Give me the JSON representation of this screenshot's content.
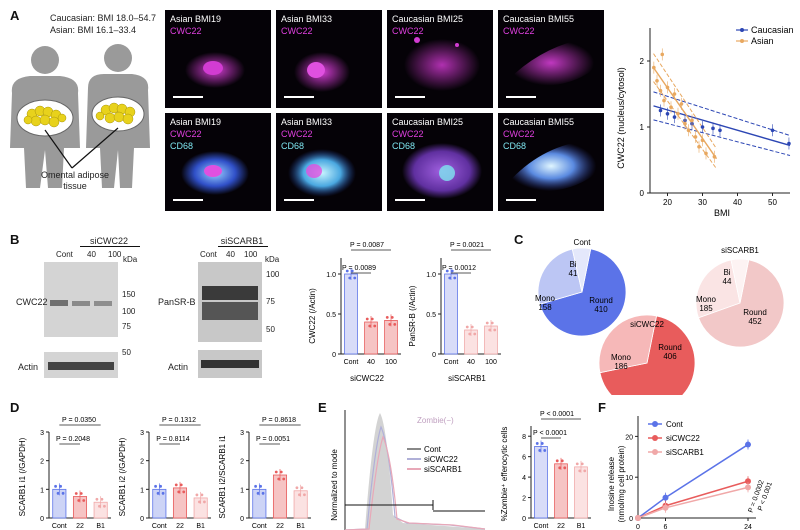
{
  "panels": {
    "a": "A",
    "b": "B",
    "c": "C",
    "d": "D",
    "e": "E",
    "f": "F"
  },
  "a": {
    "bmi_line1": "Caucasian: BMI 18.0–54.7",
    "bmi_line2": "Asian: BMI 16.1–33.4",
    "tissue_line1": "Omental adipose",
    "tissue_line2": "tissue",
    "micro_top": [
      {
        "title": "Asian BMI19",
        "ch1": "CWC22"
      },
      {
        "title": "Asian BMI33",
        "ch1": "CWC22"
      },
      {
        "title": "Caucasian BMI25",
        "ch1": "CWC22"
      },
      {
        "title": "Caucasian BMI55",
        "ch1": "CWC22"
      }
    ],
    "micro_bottom": [
      {
        "title": "Asian BMI19",
        "ch1": "CWC22",
        "ch2": "CD68"
      },
      {
        "title": "Asian BMI33",
        "ch1": "CWC22",
        "ch2": "CD68"
      },
      {
        "title": "Caucasian BMI25",
        "ch1": "CWC22",
        "ch2": "CD68"
      },
      {
        "title": "Caucasian BMI55",
        "ch1": "CWC22",
        "ch2": "CD68"
      }
    ],
    "colors": {
      "magenta": "#d23cd2",
      "cyan": "#7ee6f0",
      "caucasian": "#2c46b4",
      "asian": "#e8a860"
    }
  },
  "b": {
    "blot1_header": "siCWC22",
    "blot1_lanes": [
      "Cont",
      "40",
      "100"
    ],
    "blot1_kda": "kDa",
    "blot1_markers": [
      "150",
      "100",
      "75",
      "50"
    ],
    "blot1_protein": "CWC22",
    "blot1_actin": "Actin",
    "blot2_header": "siSCARB1",
    "blot2_lanes": [
      "Cont",
      "40",
      "100"
    ],
    "blot2_kda": "kDa",
    "blot2_markers": [
      "100",
      "75",
      "50"
    ],
    "blot2_protein": "PanSR-B",
    "blot2_actin": "Actin",
    "bar1_p1": "P = 0.0087",
    "bar1_p2": "P = 0.0089",
    "bar1_ylabel": "CWC22 (/Actin)",
    "bar1_x": [
      "Cont",
      "40",
      "100"
    ],
    "bar1_group": "siCWC22",
    "bar2_p1": "P = 0.0021",
    "bar2_p2": "P = 0.0012",
    "bar2_ylabel": "PanSR-B (/Actin)",
    "bar2_x": [
      "Cont",
      "40",
      "100"
    ],
    "bar2_group": "siSCARB1"
  },
  "c": {
    "pie1_title": "Cont",
    "pie2_title": "siCWC22",
    "pie3_title": "siSCARB1",
    "slice_labels": {
      "bi": "Bi",
      "mono": "Mono",
      "round": "Round"
    },
    "cont": {
      "bi": "41",
      "mono": "158",
      "round": "410"
    },
    "sicwc22": {
      "mono": "186",
      "round": "406"
    },
    "siscarb1": {
      "bi": "44",
      "mono": "185",
      "round": "452"
    },
    "colors": {
      "cont": "#5b73e8",
      "sicwc22": "#e85c5c",
      "siscarb1": "#f2c8c8"
    }
  },
  "d": {
    "g1_p1": "P = 0.0350",
    "g1_p2": "P = 0.2048",
    "g1_ylabel": "SCARB1 i1 (/GAPDH)",
    "g2_p1": "P = 0.1312",
    "g2_p2": "P = 0.8114",
    "g2_ylabel": "SCARB1 i2 (/GAPDH)",
    "g3_p1": "P = 0.8618",
    "g3_p2": "P = 0.0051",
    "g3_ylabel": "SCARB1 i2/SCARB1 i1",
    "x_partial": [
      "Cont",
      "22",
      "B1"
    ]
  },
  "e": {
    "hist_ylabel": "Normalized to mode",
    "zombie_label": "Zombie(−)",
    "legend": [
      "Cont",
      "siCWC22",
      "siSCARB1"
    ],
    "bar_p1": "P < 0.0001",
    "bar_p2": "P < 0.0001",
    "bar_ylabel": "%Zombie⁺ efferocytic cells",
    "x_partial": [
      "Cont",
      "22",
      "B1"
    ]
  },
  "f": {
    "legend": [
      "Cont",
      "siCWC22",
      "siSCARB1"
    ],
    "ylabel_line1": "Inosine release",
    "ylabel_line2": "(nmol/mg cell protein)",
    "p1": "P = 0.0002",
    "p2": "P < 0.001",
    "x_ticks": [
      "0",
      "6",
      "24"
    ]
  },
  "chart_data": [
    {
      "type": "scatter",
      "title": "",
      "xlabel": "BMI",
      "ylabel": "CWC22 (nucleus/cytosol)",
      "xlim": [
        15,
        55
      ],
      "ylim": [
        0,
        2.5
      ],
      "x_ticks": [
        "20",
        "30",
        "40",
        "50"
      ],
      "y_ticks": [
        "0",
        "1",
        "2"
      ],
      "legend": "top-right",
      "series": [
        {
          "name": "Caucasian",
          "color": "#2c46b4",
          "points": [
            [
              18,
              1.25
            ],
            [
              20,
              1.2
            ],
            [
              22,
              1.15
            ],
            [
              25,
              1.1
            ],
            [
              27,
              1.05
            ],
            [
              30,
              1.0
            ],
            [
              33,
              0.98
            ],
            [
              35,
              0.95
            ],
            [
              50,
              0.95
            ],
            [
              54.7,
              0.75
            ]
          ]
        },
        {
          "name": "Asian",
          "color": "#e8a860",
          "points": [
            [
              16.1,
              1.9
            ],
            [
              17,
              1.7
            ],
            [
              18,
              1.55
            ],
            [
              18.5,
              2.1
            ],
            [
              19,
              1.4
            ],
            [
              20,
              1.6
            ],
            [
              21,
              1.3
            ],
            [
              22,
              1.5
            ],
            [
              23,
              1.2
            ],
            [
              24,
              1.35
            ],
            [
              25,
              1.05
            ],
            [
              26,
              0.95
            ],
            [
              27,
              1.1
            ],
            [
              28,
              0.85
            ],
            [
              29,
              0.7
            ],
            [
              30,
              0.8
            ],
            [
              31,
              0.6
            ],
            [
              33.4,
              0.55
            ]
          ]
        }
      ],
      "fit_lines": [
        {
          "series": "Caucasian",
          "from": [
            16,
            1.32
          ],
          "to": [
            55,
            0.72
          ]
        },
        {
          "series": "Asian",
          "from": [
            16,
            1.9
          ],
          "to": [
            34,
            0.52
          ]
        }
      ]
    },
    {
      "type": "bar",
      "title": "",
      "xlabel": "",
      "ylabel": "CWC22 (/Actin)",
      "categories": [
        "Cont",
        "40",
        "100"
      ],
      "values": [
        1.0,
        0.4,
        0.42
      ],
      "ylim": [
        0,
        1.2
      ],
      "y_ticks": [
        "0",
        "0.5",
        "1.0"
      ]
    },
    {
      "type": "bar",
      "title": "",
      "xlabel": "",
      "ylabel": "PanSR-B (/Actin)",
      "categories": [
        "Cont",
        "40",
        "100"
      ],
      "values": [
        1.0,
        0.3,
        0.35
      ],
      "ylim": [
        0,
        1.2
      ],
      "y_ticks": [
        "0",
        "0.5",
        "1.0"
      ]
    },
    {
      "type": "pie",
      "title": "Cont",
      "categories": [
        "Round",
        "Mono",
        "Bi"
      ],
      "values": [
        410,
        158,
        41
      ]
    },
    {
      "type": "pie",
      "title": "siCWC22",
      "categories": [
        "Round",
        "Mono"
      ],
      "values": [
        406,
        186
      ]
    },
    {
      "type": "pie",
      "title": "siSCARB1",
      "categories": [
        "Round",
        "Mono",
        "Bi"
      ],
      "values": [
        452,
        185,
        44
      ]
    },
    {
      "type": "bar",
      "title": "",
      "ylabel": "SCARB1 i1 (/GAPDH)",
      "categories": [
        "Cont",
        "siCWC22",
        "siSCARB1"
      ],
      "values": [
        1.0,
        0.75,
        0.55
      ],
      "ylim": [
        0,
        3
      ],
      "y_ticks": [
        "0",
        "1",
        "2",
        "3"
      ]
    },
    {
      "type": "bar",
      "title": "",
      "ylabel": "SCARB1 i2 (/GAPDH)",
      "categories": [
        "Cont",
        "siCWC22",
        "siSCARB1"
      ],
      "values": [
        1.0,
        1.05,
        0.7
      ],
      "ylim": [
        0,
        3
      ],
      "y_ticks": [
        "0",
        "1",
        "2",
        "3"
      ]
    },
    {
      "type": "bar",
      "title": "",
      "ylabel": "SCARB1 i2/SCARB1 i1",
      "categories": [
        "Cont",
        "siCWC22",
        "siSCARB1"
      ],
      "values": [
        1.0,
        1.5,
        0.95
      ],
      "ylim": [
        0,
        3
      ],
      "y_ticks": [
        "0",
        "1",
        "2",
        "3"
      ]
    },
    {
      "type": "bar",
      "title": "",
      "ylabel": "%Zombie⁺ efferocytic cells",
      "categories": [
        "Cont",
        "siCWC22",
        "siSCARB1"
      ],
      "values": [
        7.0,
        5.3,
        5.0
      ],
      "ylim": [
        0,
        9
      ],
      "y_ticks": [
        "0",
        "2",
        "4",
        "6",
        "8"
      ]
    },
    {
      "type": "line",
      "title": "",
      "xlabel": "",
      "ylabel": "Inosine release (nmol/mg cell protein)",
      "x": [
        0,
        6,
        24
      ],
      "ylim": [
        0,
        25
      ],
      "x_ticks": [
        "0",
        "6",
        "24"
      ],
      "y_ticks": [
        "0",
        "10",
        "20"
      ],
      "legend": "top-left",
      "series": [
        {
          "name": "Cont",
          "color": "#5b73e8",
          "values": [
            0,
            5,
            18
          ]
        },
        {
          "name": "siCWC22",
          "color": "#e85c5c",
          "values": [
            0,
            3,
            9
          ]
        },
        {
          "name": "siSCARB1",
          "color": "#f0a8a8",
          "values": [
            0,
            2.5,
            7.5
          ]
        }
      ]
    }
  ]
}
